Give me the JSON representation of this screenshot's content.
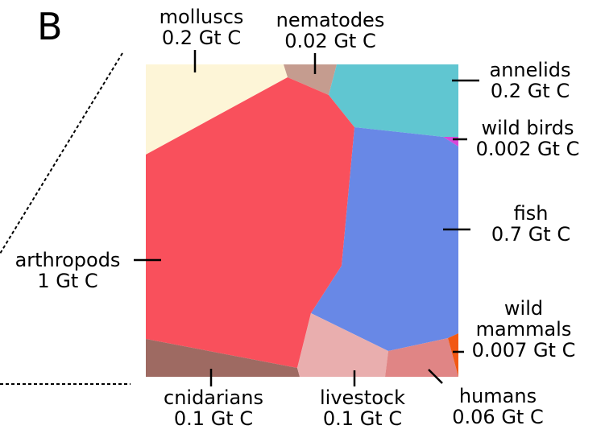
{
  "panel_label": "B",
  "colors": {
    "molluscs": "#fdf5d7",
    "nematodes": "#c59c8f",
    "annelids": "#60c6d1",
    "wild_birds": "#d847d8",
    "fish": "#6888e6",
    "arthropods": "#f9505c",
    "cnidarians": "#9e6a62",
    "livestock": "#e9aeae",
    "humans": "#e08585",
    "wild_mammals": "#f25814"
  },
  "taxa": [
    {
      "id": "molluscs",
      "name": "molluscs",
      "biomass": "0.2 Gt C",
      "value_gt_c": 0.2
    },
    {
      "id": "nematodes",
      "name": "nematodes",
      "biomass": "0.02 Gt C",
      "value_gt_c": 0.02
    },
    {
      "id": "annelids",
      "name": "annelids",
      "biomass": "0.2 Gt C",
      "value_gt_c": 0.2
    },
    {
      "id": "wild_birds",
      "name": "wild birds",
      "biomass": "0.002 Gt C",
      "value_gt_c": 0.002
    },
    {
      "id": "fish",
      "name": "fish",
      "biomass": "0.7 Gt C",
      "value_gt_c": 0.7
    },
    {
      "id": "wild_mammals",
      "name_line1": "wild",
      "name_line2": "mammals",
      "biomass": "0.007 Gt C",
      "value_gt_c": 0.007
    },
    {
      "id": "arthropods",
      "name": "arthropods",
      "biomass": "1 Gt C",
      "value_gt_c": 1
    },
    {
      "id": "cnidarians",
      "name": "cnidarians",
      "biomass": "0.1 Gt C",
      "value_gt_c": 0.1
    },
    {
      "id": "livestock",
      "name": "livestock",
      "biomass": "0.1 Gt C",
      "value_gt_c": 0.1
    },
    {
      "id": "humans",
      "name": "humans",
      "biomass": "0.06 Gt C",
      "value_gt_c": 0.06
    }
  ]
}
